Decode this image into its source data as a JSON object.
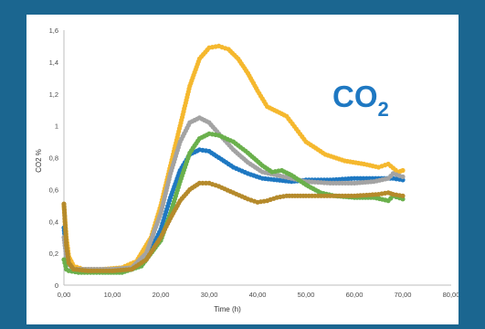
{
  "chart_data": {
    "type": "scatter",
    "xlabel": "Time (h)",
    "ylabel": "CO2 %",
    "xlim": [
      0,
      80
    ],
    "ylim": [
      0,
      1.6
    ],
    "x_ticks": [
      "0,00",
      "10,00",
      "20,00",
      "30,00",
      "40,00",
      "50,00",
      "60,00",
      "70,00",
      "80,00"
    ],
    "y_ticks": [
      "0",
      "0,2",
      "0,4",
      "0,6",
      "0,8",
      "1",
      "1,2",
      "1,4",
      "1,6"
    ],
    "grid": false,
    "legend": "none",
    "annotation": {
      "main": "CO",
      "sub": "2",
      "color": "#1e78c2"
    },
    "series": [
      {
        "color": "#f5b82e",
        "points": [
          [
            0,
            0.5
          ],
          [
            0.5,
            0.3
          ],
          [
            1,
            0.18
          ],
          [
            2,
            0.12
          ],
          [
            4,
            0.1
          ],
          [
            8,
            0.1
          ],
          [
            12,
            0.11
          ],
          [
            15,
            0.15
          ],
          [
            18,
            0.3
          ],
          [
            20,
            0.5
          ],
          [
            22,
            0.75
          ],
          [
            24,
            1.0
          ],
          [
            26,
            1.25
          ],
          [
            28,
            1.42
          ],
          [
            30,
            1.49
          ],
          [
            32,
            1.5
          ],
          [
            34,
            1.48
          ],
          [
            36,
            1.42
          ],
          [
            38,
            1.33
          ],
          [
            40,
            1.22
          ],
          [
            42,
            1.12
          ],
          [
            44,
            1.09
          ],
          [
            46,
            1.06
          ],
          [
            48,
            0.98
          ],
          [
            50,
            0.9
          ],
          [
            54,
            0.82
          ],
          [
            58,
            0.78
          ],
          [
            62,
            0.76
          ],
          [
            65,
            0.74
          ],
          [
            67,
            0.76
          ],
          [
            69,
            0.71
          ],
          [
            70,
            0.72
          ]
        ]
      },
      {
        "color": "#1e78c2",
        "points": [
          [
            0,
            0.36
          ],
          [
            0.5,
            0.2
          ],
          [
            1,
            0.13
          ],
          [
            2,
            0.1
          ],
          [
            5,
            0.09
          ],
          [
            10,
            0.09
          ],
          [
            14,
            0.1
          ],
          [
            17,
            0.16
          ],
          [
            20,
            0.35
          ],
          [
            22,
            0.55
          ],
          [
            24,
            0.72
          ],
          [
            26,
            0.82
          ],
          [
            28,
            0.85
          ],
          [
            30,
            0.84
          ],
          [
            32,
            0.8
          ],
          [
            35,
            0.74
          ],
          [
            38,
            0.7
          ],
          [
            41,
            0.67
          ],
          [
            44,
            0.66
          ],
          [
            47,
            0.65
          ],
          [
            50,
            0.66
          ],
          [
            55,
            0.66
          ],
          [
            60,
            0.67
          ],
          [
            65,
            0.67
          ],
          [
            68,
            0.67
          ],
          [
            70,
            0.66
          ]
        ]
      },
      {
        "color": "#a3a3a3",
        "points": [
          [
            0,
            0.3
          ],
          [
            0.5,
            0.18
          ],
          [
            1,
            0.13
          ],
          [
            2,
            0.1
          ],
          [
            5,
            0.1
          ],
          [
            10,
            0.1
          ],
          [
            14,
            0.11
          ],
          [
            17,
            0.2
          ],
          [
            20,
            0.45
          ],
          [
            22,
            0.7
          ],
          [
            24,
            0.9
          ],
          [
            26,
            1.02
          ],
          [
            28,
            1.05
          ],
          [
            30,
            1.02
          ],
          [
            32,
            0.95
          ],
          [
            35,
            0.85
          ],
          [
            38,
            0.77
          ],
          [
            41,
            0.71
          ],
          [
            44,
            0.69
          ],
          [
            47,
            0.67
          ],
          [
            50,
            0.65
          ],
          [
            55,
            0.64
          ],
          [
            60,
            0.64
          ],
          [
            64,
            0.65
          ],
          [
            67,
            0.67
          ],
          [
            68,
            0.7
          ],
          [
            70,
            0.68
          ]
        ]
      },
      {
        "color": "#6ab04c",
        "points": [
          [
            0,
            0.16
          ],
          [
            0.5,
            0.1
          ],
          [
            1,
            0.09
          ],
          [
            3,
            0.08
          ],
          [
            8,
            0.08
          ],
          [
            12,
            0.08
          ],
          [
            16,
            0.12
          ],
          [
            20,
            0.28
          ],
          [
            22,
            0.45
          ],
          [
            24,
            0.65
          ],
          [
            26,
            0.83
          ],
          [
            28,
            0.92
          ],
          [
            30,
            0.95
          ],
          [
            32,
            0.94
          ],
          [
            35,
            0.9
          ],
          [
            38,
            0.83
          ],
          [
            41,
            0.75
          ],
          [
            43,
            0.71
          ],
          [
            45,
            0.72
          ],
          [
            47,
            0.69
          ],
          [
            50,
            0.63
          ],
          [
            53,
            0.58
          ],
          [
            56,
            0.56
          ],
          [
            60,
            0.55
          ],
          [
            64,
            0.55
          ],
          [
            67,
            0.53
          ],
          [
            68,
            0.56
          ],
          [
            70,
            0.54
          ]
        ]
      },
      {
        "color": "#b58a2b",
        "points": [
          [
            0,
            0.51
          ],
          [
            0.5,
            0.25
          ],
          [
            1,
            0.14
          ],
          [
            2,
            0.1
          ],
          [
            5,
            0.09
          ],
          [
            10,
            0.09
          ],
          [
            14,
            0.1
          ],
          [
            17,
            0.16
          ],
          [
            20,
            0.3
          ],
          [
            22,
            0.42
          ],
          [
            24,
            0.53
          ],
          [
            26,
            0.6
          ],
          [
            28,
            0.64
          ],
          [
            30,
            0.64
          ],
          [
            32,
            0.62
          ],
          [
            35,
            0.58
          ],
          [
            38,
            0.54
          ],
          [
            40,
            0.52
          ],
          [
            42,
            0.53
          ],
          [
            44,
            0.55
          ],
          [
            46,
            0.56
          ],
          [
            50,
            0.56
          ],
          [
            55,
            0.56
          ],
          [
            60,
            0.56
          ],
          [
            65,
            0.57
          ],
          [
            67,
            0.58
          ],
          [
            68,
            0.57
          ],
          [
            70,
            0.56
          ]
        ]
      }
    ]
  }
}
